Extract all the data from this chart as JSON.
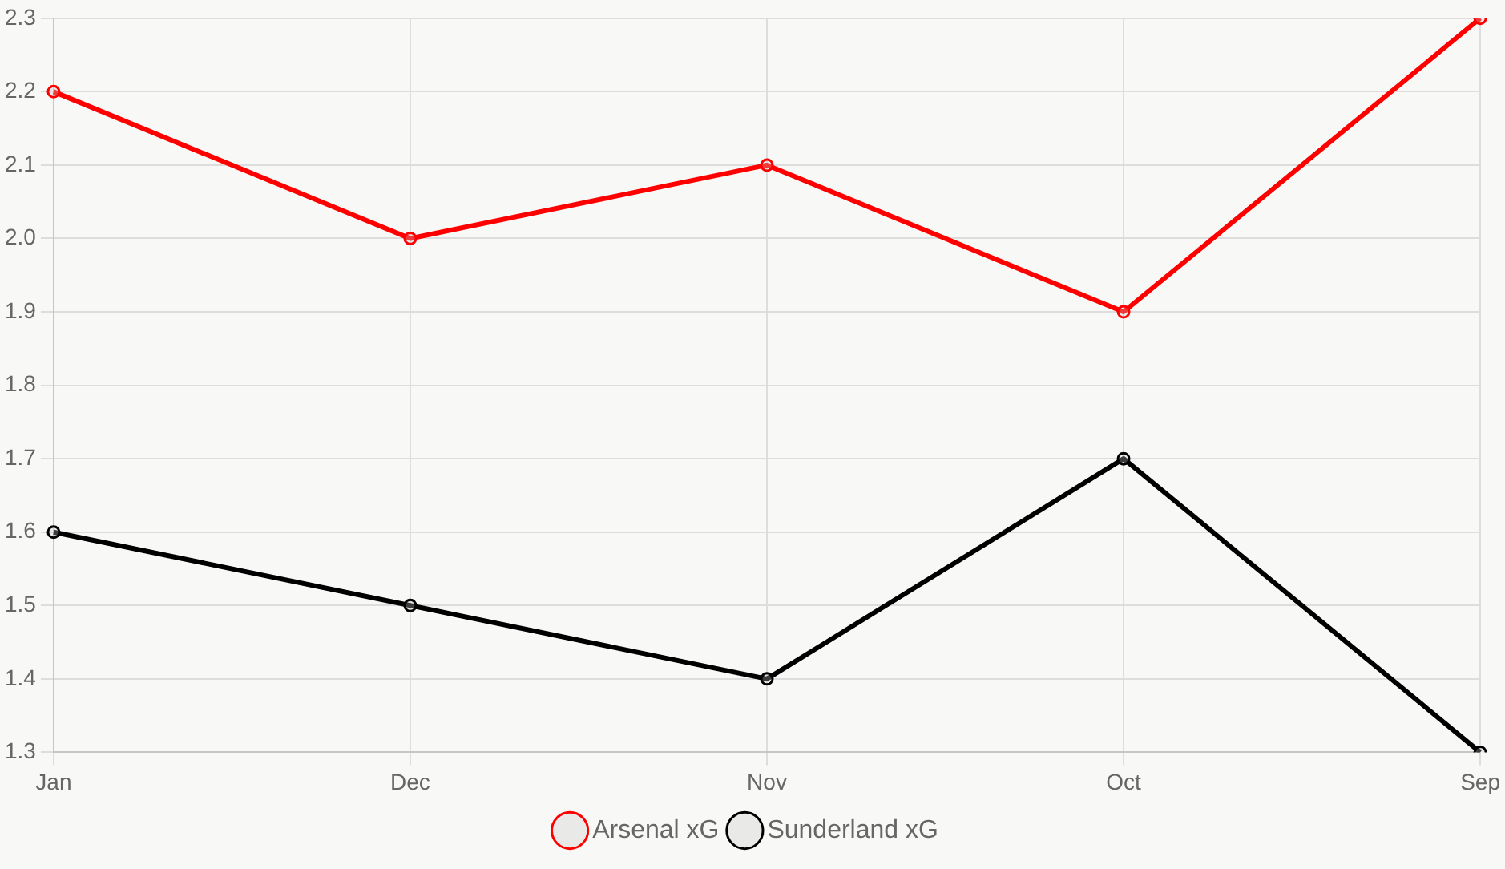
{
  "chart_data": {
    "type": "line",
    "categories": [
      "Jan",
      "Dec",
      "Nov",
      "Oct",
      "Sep"
    ],
    "series": [
      {
        "name": "Arsenal xG",
        "color": "#ff0000",
        "values": [
          2.2,
          2.0,
          2.1,
          1.9,
          2.3
        ]
      },
      {
        "name": "Sunderland xG",
        "color": "#000000",
        "values": [
          1.6,
          1.5,
          1.4,
          1.7,
          1.3
        ]
      }
    ],
    "ylim": [
      1.3,
      2.3
    ],
    "yticks": [
      1.3,
      1.4,
      1.5,
      1.6,
      1.7,
      1.8,
      1.9,
      {
        "value": 2,
        "label": "2.0"
      },
      2.1,
      2.2,
      2.3
    ],
    "grid": true,
    "legend": "bottom",
    "marker": "circle",
    "line_style": "solid"
  }
}
